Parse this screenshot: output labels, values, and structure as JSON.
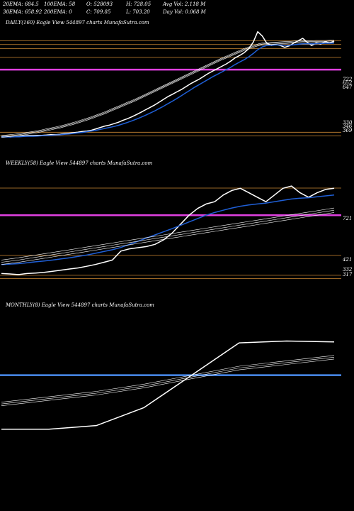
{
  "header": {
    "row1": [
      "20EMA: 684.5",
      "100EMA: 58",
      "O: 528093",
      "H: 728.05",
      "Avg Vol: 2.118  M"
    ],
    "row2": [
      "30EMA: 658.92",
      "200EMA: 0",
      "C: 709.85",
      "L: 703.20",
      "Day Vol: 0.068 M"
    ]
  },
  "colors": {
    "background": "#000000",
    "price": "#ffffff",
    "ema": "#1f5fd6",
    "support": "#cc8833",
    "pivot": "#e040e0",
    "monthly_band": "#4a8cf0"
  },
  "chart_data": [
    {
      "type": "line",
      "title": "DAILY(160) Eagle   View  544897 charts MunafaSutra.com",
      "right_labels": [
        "722",
        "652",
        "647",
        "330",
        "346",
        "369"
      ],
      "hlines": [
        {
          "value": 722,
          "color": "#cc8833"
        },
        {
          "value": 706,
          "color": "#cc8833"
        },
        {
          "value": 689,
          "color": "#cc8833"
        },
        {
          "value": 652,
          "color": "#cc8833"
        },
        {
          "value": 600,
          "color": "#e040e0"
        },
        {
          "value": 336,
          "color": "#cc8833"
        },
        {
          "value": 320,
          "color": "#cc8833"
        }
      ],
      "ylim": [
        310,
        780
      ],
      "series": [
        {
          "role": "price",
          "values": [
            318,
            318,
            316,
            318,
            320,
            321,
            322,
            322,
            323,
            323,
            324,
            326,
            326,
            327,
            330,
            332,
            334,
            336,
            339,
            341,
            344,
            350,
            356,
            362,
            366,
            372,
            378,
            386,
            393,
            401,
            410,
            420,
            430,
            440,
            450,
            462,
            474,
            486,
            496,
            506,
            516,
            528,
            540,
            550,
            560,
            572,
            584,
            594,
            604,
            614,
            624,
            636,
            650,
            660,
            672,
            688,
            716,
            760,
            742,
            712,
            702,
            706,
            702,
            694,
            700,
            712,
            722,
            732,
            716,
            702,
            712,
            708,
            718,
            712,
            720
          ]
        },
        {
          "role": "ema",
          "values": [
            316,
            316,
            316,
            317,
            317,
            318,
            319,
            319,
            320,
            321,
            322,
            323,
            324,
            325,
            327,
            329,
            331,
            333,
            335,
            338,
            341,
            344,
            348,
            352,
            356,
            360,
            365,
            371,
            377,
            384,
            391,
            399,
            407,
            416,
            425,
            435,
            445,
            456,
            467,
            478,
            490,
            502,
            514,
            526,
            537,
            548,
            559,
            570,
            580,
            590,
            600,
            610,
            622,
            632,
            642,
            654,
            668,
            684,
            696,
            702,
            703,
            704,
            704,
            703,
            703,
            705,
            707,
            709,
            709,
            709,
            709,
            710,
            711,
            711,
            712
          ]
        },
        {
          "role": "avg1",
          "values": [
            322,
            324,
            326,
            328,
            330,
            333,
            336,
            339,
            342,
            346,
            350,
            354,
            358,
            362,
            367,
            372,
            377,
            383,
            389,
            395,
            401,
            408,
            415,
            422,
            430,
            438,
            446,
            454,
            462,
            470,
            478,
            487,
            496,
            505,
            514,
            523,
            532,
            541,
            550,
            559,
            568,
            577,
            586,
            595,
            604,
            613,
            622,
            631,
            640,
            649,
            657,
            665,
            673,
            681,
            689,
            696,
            702,
            708,
            712,
            714,
            715,
            716,
            717,
            718,
            719,
            720,
            721,
            722,
            722,
            722,
            723,
            723,
            723,
            724,
            724
          ]
        },
        {
          "role": "avg2",
          "values": [
            318,
            320,
            322,
            324,
            326,
            329,
            332,
            335,
            338,
            342,
            346,
            350,
            354,
            358,
            363,
            368,
            373,
            379,
            385,
            391,
            397,
            404,
            411,
            418,
            426,
            434,
            442,
            450,
            458,
            466,
            474,
            483,
            492,
            501,
            510,
            519,
            528,
            537,
            546,
            555,
            564,
            573,
            582,
            591,
            600,
            609,
            618,
            627,
            636,
            645,
            653,
            661,
            669,
            677,
            685,
            692,
            698,
            704,
            708,
            710,
            711,
            712,
            713,
            714,
            715,
            716,
            717,
            718,
            718,
            718,
            719,
            719,
            719,
            720,
            720
          ]
        },
        {
          "role": "avg3",
          "values": [
            314,
            316,
            318,
            320,
            322,
            325,
            328,
            331,
            334,
            338,
            342,
            346,
            350,
            354,
            359,
            364,
            369,
            375,
            381,
            387,
            393,
            400,
            407,
            414,
            422,
            430,
            438,
            446,
            454,
            462,
            470,
            479,
            488,
            497,
            506,
            515,
            524,
            533,
            542,
            551,
            560,
            569,
            578,
            587,
            596,
            605,
            614,
            623,
            632,
            641,
            649,
            657,
            665,
            673,
            681,
            688,
            694,
            700,
            704,
            706,
            707,
            708,
            709,
            710,
            711,
            712,
            713,
            714,
            714,
            714,
            715,
            715,
            715,
            716,
            716
          ]
        }
      ]
    },
    {
      "type": "line",
      "title": "WEEKLY(58) Eagle   View  544897 charts MunafaSutra.com",
      "right_labels": [
        "721",
        "421",
        "332",
        "317"
      ],
      "hlines": [
        {
          "value": 721,
          "color": "#cc8833"
        },
        {
          "value": 600,
          "color": "#e040e0"
        },
        {
          "value": 421,
          "color": "#cc8833"
        },
        {
          "value": 332,
          "color": "#cc8833"
        },
        {
          "value": 317,
          "color": "#cc8833"
        }
      ],
      "ylim": [
        300,
        800
      ],
      "series": [
        {
          "role": "price",
          "values": [
            340,
            338,
            335,
            340,
            342,
            345,
            350,
            355,
            360,
            365,
            372,
            380,
            390,
            400,
            440,
            450,
            455,
            460,
            470,
            490,
            520,
            560,
            600,
            630,
            650,
            660,
            690,
            710,
            720,
            700,
            680,
            660,
            690,
            720,
            730,
            700,
            680,
            700,
            715,
            720
          ]
        },
        {
          "role": "ema",
          "values": [
            380,
            382,
            384,
            388,
            392,
            396,
            400,
            405,
            410,
            416,
            422,
            430,
            438,
            446,
            456,
            470,
            484,
            498,
            512,
            526,
            540,
            555,
            570,
            585,
            600,
            612,
            622,
            632,
            640,
            646,
            650,
            654,
            660,
            666,
            672,
            676,
            678,
            682,
            686,
            690
          ]
        },
        {
          "role": "avg1",
          "values": [
            400,
            405,
            410,
            416,
            422,
            428,
            434,
            440,
            446,
            452,
            458,
            464,
            470,
            476,
            482,
            488,
            494,
            500,
            506,
            512,
            518,
            524,
            530,
            536,
            542,
            548,
            554,
            560,
            566,
            572,
            578,
            584,
            590,
            596,
            602,
            608,
            614,
            620,
            626,
            632
          ]
        },
        {
          "role": "avg2",
          "values": [
            390,
            395,
            400,
            406,
            412,
            418,
            424,
            430,
            436,
            442,
            448,
            454,
            460,
            466,
            472,
            478,
            484,
            490,
            496,
            502,
            508,
            514,
            520,
            526,
            532,
            538,
            544,
            550,
            556,
            562,
            568,
            574,
            580,
            586,
            592,
            598,
            604,
            610,
            616,
            622
          ]
        },
        {
          "role": "avg3",
          "values": [
            380,
            385,
            390,
            396,
            402,
            408,
            414,
            420,
            426,
            432,
            438,
            444,
            450,
            456,
            462,
            468,
            474,
            480,
            486,
            492,
            498,
            504,
            510,
            516,
            522,
            528,
            534,
            540,
            546,
            552,
            558,
            564,
            570,
            576,
            582,
            588,
            594,
            600,
            606,
            612
          ]
        }
      ]
    },
    {
      "type": "line",
      "title": "MONTHLY(8) Eagle   View  544897 charts MunafaSutra.com",
      "right_labels": [],
      "hlines": [
        {
          "value": 600,
          "color": "#4a8cf0"
        }
      ],
      "ylim": [
        200,
        950
      ],
      "series": [
        {
          "role": "price",
          "values": [
            300,
            300,
            320,
            420,
            600,
            780,
            790,
            785
          ]
        },
        {
          "role": "avg1",
          "values": [
            450,
            480,
            510,
            550,
            600,
            650,
            680,
            710
          ]
        },
        {
          "role": "avg2",
          "values": [
            440,
            470,
            500,
            540,
            590,
            640,
            670,
            700
          ]
        },
        {
          "role": "avg3",
          "values": [
            430,
            460,
            490,
            530,
            580,
            630,
            660,
            690
          ]
        }
      ]
    }
  ]
}
